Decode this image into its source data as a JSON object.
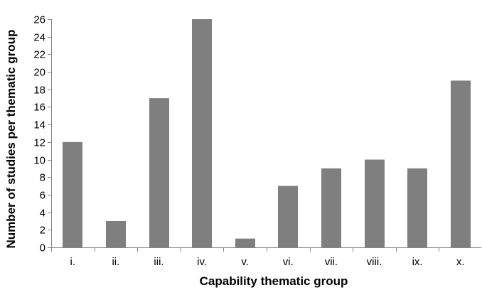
{
  "chart_data": {
    "type": "bar",
    "title": "",
    "xlabel": "Capability thematic group",
    "ylabel": "Number of studies per thematic group",
    "categories": [
      "i.",
      "ii.",
      "iii.",
      "iv.",
      "v.",
      "vi.",
      "vii.",
      "viii.",
      "ix.",
      "x."
    ],
    "values": [
      12,
      3,
      17,
      26,
      1,
      7,
      9,
      10,
      9,
      19
    ],
    "ylim": [
      0,
      26
    ],
    "yticks": [
      0,
      2,
      4,
      6,
      8,
      10,
      12,
      14,
      16,
      18,
      20,
      22,
      24,
      26
    ],
    "grid": false,
    "legend": "none",
    "bar_color": "#7f7f7f",
    "axis_color": "#868686"
  }
}
